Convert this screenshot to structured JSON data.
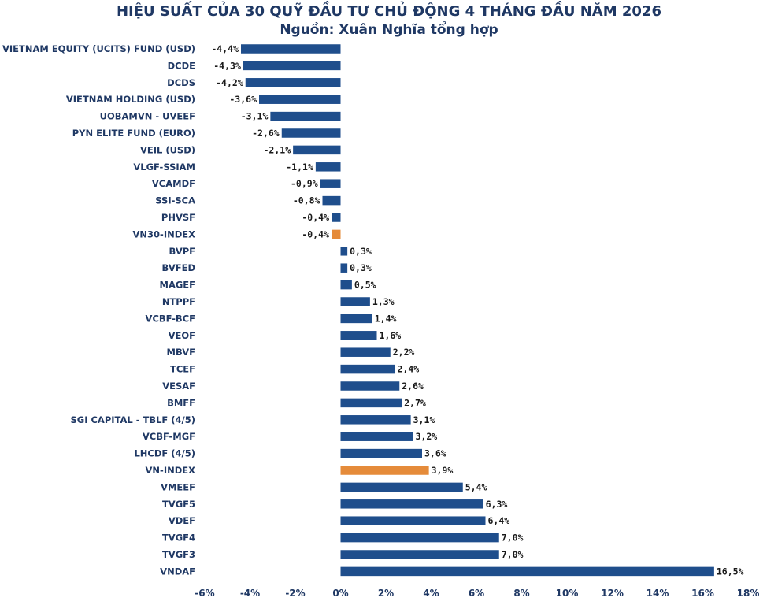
{
  "title": "HIỆU SUẤT CỦA 30 QUỸ ĐẦU TƯ CHỦ ĐỘNG 4 THÁNG ĐẦU NĂM 2026",
  "subtitle": "Nguồn: Xuân Nghĩa tổng hợp",
  "colors": {
    "fund": "#1f4e8c",
    "index": "#e58b3a",
    "text": "#1f3864"
  },
  "chart_data": {
    "type": "bar",
    "orientation": "horizontal",
    "title": "HIỆU SUẤT CỦA 30 QUỸ ĐẦU TƯ CHỦ ĐỘNG 4 THÁNG ĐẦU NĂM 2026",
    "subtitle": "Nguồn: Xuân Nghĩa tổng hợp",
    "xlabel": "",
    "ylabel": "",
    "xlim": [
      -6,
      18
    ],
    "x_ticks": [
      "-6%",
      "-4%",
      "-2%",
      "0%",
      "2%",
      "4%",
      "6%",
      "8%",
      "10%",
      "12%",
      "14%",
      "16%",
      "18%"
    ],
    "grid": false,
    "legend": "none",
    "categories": [
      "VIETNAM EQUITY (UCITS) FUND (USD)",
      "DCDE",
      "DCDS",
      "VIETNAM HOLDING (USD)",
      "UOBAMVN - UVEEF",
      "PYN ELITE FUND (EURO)",
      "VEIL (USD)",
      "VLGF-SSIAM",
      "VCAMDF",
      "SSI-SCA",
      "PHVSF",
      "VN30-INDEX",
      "BVPF",
      "BVFED",
      "MAGEF",
      "NTPPF",
      "VCBF-BCF",
      "VEOF",
      "MBVF",
      "TCEF",
      "VESAF",
      "BMFF",
      "SGI CAPITAL - TBLF (4/5)",
      "VCBF-MGF",
      "LHCDF (4/5)",
      "VN-INDEX",
      "VMEEF",
      "TVGF5",
      "VDEF",
      "TVGF4",
      "TVGF3",
      "VNDAF"
    ],
    "values": [
      -4.4,
      -4.3,
      -4.2,
      -3.6,
      -3.1,
      -2.6,
      -2.1,
      -1.1,
      -0.9,
      -0.8,
      -0.4,
      -0.4,
      0.3,
      0.3,
      0.5,
      1.3,
      1.4,
      1.6,
      2.2,
      2.4,
      2.6,
      2.7,
      3.1,
      3.2,
      3.6,
      3.9,
      5.4,
      6.3,
      6.4,
      7.0,
      7.0,
      16.5
    ],
    "value_labels": [
      "-4,4%",
      "-4,3%",
      "-4,2%",
      "-3,6%",
      "-3,1%",
      "-2,6%",
      "-2,1%",
      "-1,1%",
      "-0,9%",
      "-0,8%",
      "-0,4%",
      "-0,4%",
      "0,3%",
      "0,3%",
      "0,5%",
      "1,3%",
      "1,4%",
      "1,6%",
      "2,2%",
      "2,4%",
      "2,6%",
      "2,7%",
      "3,1%",
      "3,2%",
      "3,6%",
      "3,9%",
      "5,4%",
      "6,3%",
      "6,4%",
      "7,0%",
      "7,0%",
      "16,5%"
    ],
    "highlighted": [
      "VN30-INDEX",
      "VN-INDEX"
    ]
  }
}
